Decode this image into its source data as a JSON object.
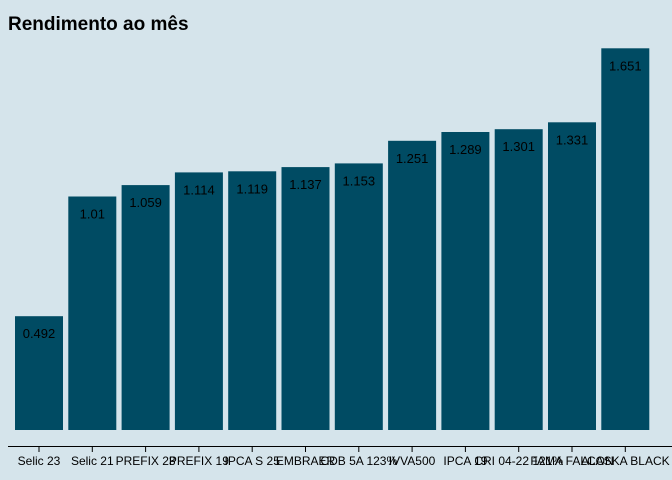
{
  "chart_data": {
    "type": "bar",
    "title": "Rendimento ao mês",
    "xlabel": "",
    "ylabel": "",
    "categories": [
      "Selic 23",
      "Selic 21",
      "PREFIX 23",
      "PREFIX 19",
      "IPCA S 25",
      "EMBRAER",
      "CDB 5A 123%",
      "IVVA500",
      "IPCA 19",
      "CRI 04-22 121%",
      "FAMA FALCON",
      "ALASKA BLACK"
    ],
    "values": [
      0.492,
      1.01,
      1.059,
      1.114,
      1.119,
      1.137,
      1.153,
      1.251,
      1.289,
      1.301,
      1.331,
      1.651
    ],
    "ylim": [
      0,
      1.73
    ],
    "grid": false,
    "colors": {
      "bar": "#004b63",
      "background": "#d5e4eb",
      "axis": "#000000"
    }
  }
}
